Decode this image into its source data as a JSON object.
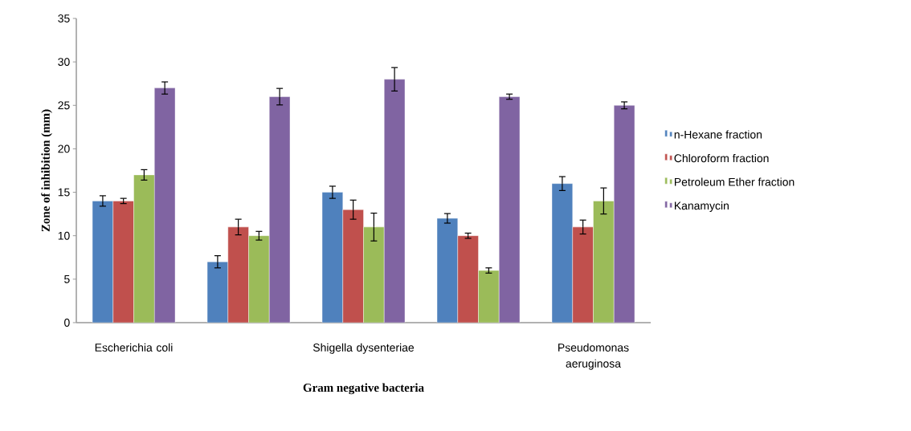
{
  "chart_data": {
    "type": "bar",
    "xlabel": "Gram negative bacteria",
    "ylabel": "Zone of inhibition (mm)",
    "categories": [
      "Escherichia coli",
      null,
      "Shigella dysenteriae",
      null,
      "Pseudomonas aeruginosa"
    ],
    "series": [
      {
        "name": "n-Hexane fraction",
        "color": "#4f81bd",
        "values": [
          14,
          7,
          15,
          12,
          16
        ],
        "errors": [
          0.6,
          0.7,
          0.7,
          0.55,
          0.8
        ]
      },
      {
        "name": "Chloroform  fraction",
        "color": "#c0504d",
        "values": [
          14,
          11,
          13,
          10,
          11
        ],
        "errors": [
          0.3,
          0.9,
          1.1,
          0.3,
          0.8
        ]
      },
      {
        "name": "Petroleum Ether  fraction",
        "color": "#9bbb59",
        "values": [
          17,
          10,
          11,
          6,
          14
        ],
        "errors": [
          0.6,
          0.5,
          1.6,
          0.3,
          1.5
        ]
      },
      {
        "name": "Kanamycin",
        "color": "#8064a2",
        "values": [
          27,
          26,
          28,
          26,
          25
        ],
        "errors": [
          0.7,
          0.95,
          1.35,
          0.3,
          0.4
        ]
      }
    ],
    "ylim": [
      0,
      35
    ],
    "yticks": [
      0,
      5,
      10,
      15,
      20,
      25,
      30,
      35
    ],
    "grid": false,
    "legend": "right"
  }
}
